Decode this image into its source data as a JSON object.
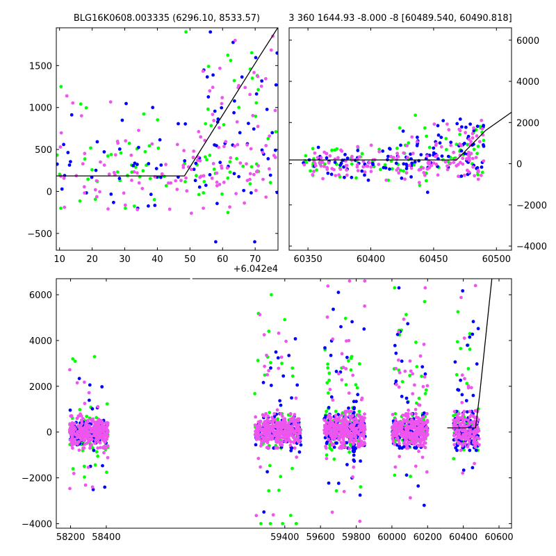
{
  "colors": {
    "series1": "#00ff00",
    "series2": "#0000ff",
    "series3": "#ee55ee",
    "model": "#000000"
  },
  "chart_data": [
    {
      "type": "scatter",
      "title": "BLG16K0608.003335 (6296.10, 8533.57)",
      "offset_label": "+6.042e4",
      "xlim": [
        60429,
        60497
      ],
      "ylim": [
        -700,
        1950
      ],
      "xticks": [
        {
          "v": 60430,
          "label": "10"
        },
        {
          "v": 60440,
          "label": "20"
        },
        {
          "v": 60450,
          "label": "30"
        },
        {
          "v": 60460,
          "label": "40"
        },
        {
          "v": 60470,
          "label": "50"
        },
        {
          "v": 60480,
          "label": "60"
        },
        {
          "v": 60490,
          "label": "70"
        }
      ],
      "yticks": [
        {
          "v": -500,
          "label": "−500"
        },
        {
          "v": 0,
          "label": "0"
        },
        {
          "v": 500,
          "label": "500"
        },
        {
          "v": 1000,
          "label": "1000"
        },
        {
          "v": 1500,
          "label": "1500"
        }
      ],
      "model_line": [
        [
          60429,
          185
        ],
        [
          60468.3,
          185
        ],
        [
          60491.5,
          1620
        ],
        [
          60497,
          1955
        ]
      ],
      "clusters": [
        {
          "x": [
            60429,
            60497
          ],
          "y": [
            -200,
            700
          ],
          "n": {
            "g": 45,
            "b": 45,
            "p": 70
          }
        },
        {
          "x": [
            60430,
            60497
          ],
          "y": [
            -600,
            1900
          ],
          "n": {
            "g": 25,
            "b": 25,
            "p": 40
          }
        },
        {
          "x": [
            60472,
            60497
          ],
          "y": [
            400,
            1850
          ],
          "n": {
            "g": 14,
            "b": 18,
            "p": 22
          }
        }
      ]
    },
    {
      "type": "scatter",
      "title": "3 360 1644.93 -8.000 -8 [60489.540, 60490.818]",
      "xlim": [
        60335,
        60512
      ],
      "ylim": [
        -4200,
        6600
      ],
      "xticks": [
        {
          "v": 60350,
          "label": "60350"
        },
        {
          "v": 60400,
          "label": "60400"
        },
        {
          "v": 60450,
          "label": "60450"
        },
        {
          "v": 60500,
          "label": "60500"
        }
      ],
      "yticks": [
        {
          "v": -4000,
          "label": "−4000"
        },
        {
          "v": -2000,
          "label": "−2000"
        },
        {
          "v": 0,
          "label": "0"
        },
        {
          "v": 2000,
          "label": "2000"
        },
        {
          "v": 4000,
          "label": "4000"
        },
        {
          "v": 6000,
          "label": "6000"
        }
      ],
      "model_line": [
        [
          60335,
          185
        ],
        [
          60468.3,
          185
        ],
        [
          60491.5,
          1620
        ],
        [
          60512,
          2500
        ]
      ],
      "clusters": [
        {
          "x": [
            60345,
            60490
          ],
          "y": [
            -800,
            900
          ],
          "n": {
            "g": 60,
            "b": 80,
            "p": 120
          }
        },
        {
          "x": [
            60420,
            60490
          ],
          "y": [
            -1500,
            3000
          ],
          "n": {
            "g": 18,
            "b": 25,
            "p": 18
          }
        },
        {
          "x": [
            60470,
            60490
          ],
          "y": [
            0,
            2500
          ],
          "n": {
            "g": 10,
            "b": 14,
            "p": 14
          }
        }
      ]
    },
    {
      "type": "scatter",
      "xlim": [
        58120,
        60670
      ],
      "ylim": [
        -4200,
        6700
      ],
      "xticks": [
        {
          "v": 58200,
          "label": "58200"
        },
        {
          "v": 58400,
          "label": "58400"
        },
        {
          "v": 59400,
          "label": "59400"
        },
        {
          "v": 59600,
          "label": "59600"
        },
        {
          "v": 59800,
          "label": "59800"
        },
        {
          "v": 60000,
          "label": "60000"
        },
        {
          "v": 60200,
          "label": "60200"
        },
        {
          "v": 60400,
          "label": "60400"
        },
        {
          "v": 60600,
          "label": "60600"
        }
      ],
      "yticks": [
        {
          "v": -4000,
          "label": "−4000"
        },
        {
          "v": -2000,
          "label": "−2000"
        },
        {
          "v": 0,
          "label": "0"
        },
        {
          "v": 2000,
          "label": "2000"
        },
        {
          "v": 4000,
          "label": "4000"
        },
        {
          "v": 6000,
          "label": "6000"
        }
      ],
      "model_line": [
        [
          60310,
          185
        ],
        [
          60468.3,
          185
        ],
        [
          60491.5,
          1620
        ],
        [
          60560,
          6700
        ]
      ],
      "clusters": [
        {
          "x": [
            58195,
            58410
          ],
          "y": [
            -700,
            700
          ],
          "n": {
            "g": 70,
            "b": 90,
            "p": 260
          }
        },
        {
          "x": [
            58195,
            58410
          ],
          "y": [
            -3500,
            3500
          ],
          "n": {
            "g": 20,
            "b": 18,
            "p": 20
          }
        },
        {
          "x": [
            59230,
            59490
          ],
          "y": [
            -700,
            800
          ],
          "n": {
            "g": 80,
            "b": 100,
            "p": 280
          }
        },
        {
          "x": [
            59230,
            59490
          ],
          "y": [
            -4000,
            6000
          ],
          "n": {
            "g": 30,
            "b": 22,
            "p": 25
          }
        },
        {
          "x": [
            59620,
            59850
          ],
          "y": [
            -700,
            900
          ],
          "n": {
            "g": 80,
            "b": 100,
            "p": 280
          }
        },
        {
          "x": [
            59620,
            59850
          ],
          "y": [
            -3900,
            6600
          ],
          "n": {
            "g": 30,
            "b": 28,
            "p": 35
          }
        },
        {
          "x": [
            59780,
            59790
          ],
          "y": [
            -1400,
            1400
          ],
          "n": {
            "g": 0,
            "b": 40,
            "p": 0
          }
        },
        {
          "x": [
            60000,
            60200
          ],
          "y": [
            -700,
            800
          ],
          "n": {
            "g": 80,
            "b": 100,
            "p": 280
          }
        },
        {
          "x": [
            60000,
            60200
          ],
          "y": [
            -3200,
            6300
          ],
          "n": {
            "g": 25,
            "b": 25,
            "p": 35
          }
        },
        {
          "x": [
            60345,
            60490
          ],
          "y": [
            -800,
            900
          ],
          "n": {
            "g": 50,
            "b": 70,
            "p": 140
          }
        },
        {
          "x": [
            60345,
            60490
          ],
          "y": [
            -3200,
            6400
          ],
          "n": {
            "g": 20,
            "b": 25,
            "p": 18
          }
        }
      ]
    }
  ]
}
